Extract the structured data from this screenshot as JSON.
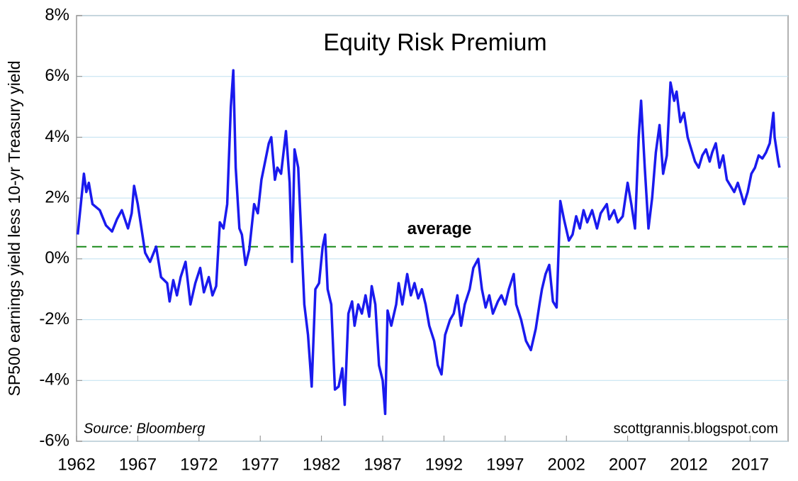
{
  "chart_data": {
    "type": "line",
    "title": "Equity Risk Premium",
    "y_label": "SP500 earnings yield less 10-yr Treasury yield",
    "source": "Source: Bloomberg",
    "watermark": "scottgrannis.blogspot.com",
    "color": "#1a1aee",
    "grid": true,
    "reference_line": {
      "value": 0.4,
      "label": "average",
      "color": "#1a8a1a"
    },
    "xlim": [
      1962,
      2020.1
    ],
    "xticks": [
      1962,
      1967,
      1972,
      1977,
      1982,
      1987,
      1992,
      1997,
      2002,
      2007,
      2012,
      2017
    ],
    "ylim": [
      -6,
      8
    ],
    "yticks": [
      {
        "value": -6,
        "label": "-6%"
      },
      {
        "value": -4,
        "label": "-4%"
      },
      {
        "value": -2,
        "label": "-2%"
      },
      {
        "value": 0,
        "label": "0%"
      },
      {
        "value": 2,
        "label": "2%"
      },
      {
        "value": 4,
        "label": "4%"
      },
      {
        "value": 6,
        "label": "6%"
      },
      {
        "value": 8,
        "label": "8%"
      }
    ],
    "x": [
      1962.1,
      1962.6,
      1962.8,
      1963.0,
      1963.3,
      1963.9,
      1964.4,
      1964.9,
      1965.3,
      1965.7,
      1966.2,
      1966.5,
      1966.7,
      1967.0,
      1967.3,
      1967.6,
      1968.0,
      1968.5,
      1968.9,
      1969.4,
      1969.6,
      1969.9,
      1970.2,
      1970.5,
      1970.9,
      1971.3,
      1971.7,
      1972.1,
      1972.4,
      1972.8,
      1973.1,
      1973.4,
      1973.7,
      1974.0,
      1974.3,
      1974.6,
      1974.8,
      1975.0,
      1975.3,
      1975.5,
      1975.8,
      1976.1,
      1976.5,
      1976.8,
      1977.1,
      1977.4,
      1977.7,
      1977.9,
      1978.2,
      1978.4,
      1978.7,
      1979.1,
      1979.4,
      1979.6,
      1979.8,
      1980.1,
      1980.4,
      1980.6,
      1980.9,
      1981.2,
      1981.5,
      1981.8,
      1982.1,
      1982.3,
      1982.5,
      1982.8,
      1983.1,
      1983.4,
      1983.7,
      1983.9,
      1984.2,
      1984.5,
      1984.7,
      1985.0,
      1985.3,
      1985.6,
      1985.9,
      1986.1,
      1986.4,
      1986.7,
      1987.0,
      1987.2,
      1987.4,
      1987.7,
      1988.1,
      1988.3,
      1988.6,
      1989.0,
      1989.3,
      1989.6,
      1989.9,
      1990.2,
      1990.5,
      1990.8,
      1991.2,
      1991.5,
      1991.8,
      1992.1,
      1992.5,
      1992.8,
      1993.1,
      1993.4,
      1993.7,
      1994.1,
      1994.4,
      1994.8,
      1995.1,
      1995.4,
      1995.7,
      1996.0,
      1996.4,
      1996.7,
      1997.0,
      1997.3,
      1997.7,
      1997.9,
      1998.3,
      1998.7,
      1999.1,
      1999.5,
      1999.8,
      2000.0,
      2000.3,
      2000.6,
      2000.9,
      2001.2,
      2001.5,
      2001.8,
      2002.2,
      2002.5,
      2002.8,
      2003.1,
      2003.4,
      2003.7,
      2004.1,
      2004.5,
      2004.8,
      2005.3,
      2005.5,
      2005.9,
      2006.2,
      2006.6,
      2007.0,
      2007.3,
      2007.6,
      2007.9,
      2008.1,
      2008.4,
      2008.7,
      2009.0,
      2009.3,
      2009.6,
      2009.9,
      2010.2,
      2010.5,
      2010.8,
      2011.0,
      2011.3,
      2011.6,
      2011.9,
      2012.2,
      2012.5,
      2012.8,
      2013.1,
      2013.4,
      2013.7,
      2013.9,
      2014.2,
      2014.5,
      2014.8,
      2015.1,
      2015.4,
      2015.7,
      2016.0,
      2016.3,
      2016.5,
      2016.8,
      2017.1,
      2017.4,
      2017.7,
      2018.0,
      2018.3,
      2018.6,
      2018.9,
      2019.0,
      2019.3,
      2019.4
    ],
    "values": [
      0.8,
      2.8,
      2.2,
      2.5,
      1.8,
      1.6,
      1.1,
      0.9,
      1.3,
      1.6,
      1.0,
      1.5,
      2.4,
      1.8,
      1.0,
      0.2,
      -0.1,
      0.4,
      -0.6,
      -0.8,
      -1.4,
      -0.7,
      -1.2,
      -0.6,
      -0.1,
      -1.5,
      -0.8,
      -0.3,
      -1.1,
      -0.6,
      -1.2,
      -0.9,
      1.2,
      1.0,
      1.8,
      5.0,
      6.2,
      3.0,
      1.0,
      0.8,
      -0.2,
      0.3,
      1.8,
      1.5,
      2.6,
      3.2,
      3.8,
      4.0,
      2.6,
      3.0,
      2.8,
      4.2,
      2.5,
      -0.1,
      3.6,
      3.0,
      0.3,
      -1.5,
      -2.5,
      -4.2,
      -1.0,
      -0.8,
      0.4,
      0.8,
      -1.0,
      -1.5,
      -4.3,
      -4.2,
      -3.6,
      -4.8,
      -1.8,
      -1.4,
      -2.2,
      -1.5,
      -1.8,
      -1.2,
      -1.9,
      -0.9,
      -1.5,
      -3.5,
      -4.0,
      -5.1,
      -1.7,
      -2.2,
      -1.5,
      -0.8,
      -1.5,
      -0.5,
      -1.2,
      -0.8,
      -1.3,
      -1.0,
      -1.5,
      -2.2,
      -2.7,
      -3.5,
      -3.8,
      -2.5,
      -2.0,
      -1.8,
      -1.2,
      -2.2,
      -1.5,
      -1.0,
      -0.3,
      0.0,
      -1.0,
      -1.6,
      -1.2,
      -1.8,
      -1.4,
      -1.2,
      -1.5,
      -1.0,
      -0.5,
      -1.5,
      -2.0,
      -2.7,
      -3.0,
      -2.3,
      -1.5,
      -1.0,
      -0.5,
      -0.2,
      -1.4,
      -1.6,
      1.9,
      1.3,
      0.6,
      0.8,
      1.4,
      1.0,
      1.6,
      1.2,
      1.6,
      1.0,
      1.5,
      1.8,
      1.3,
      1.6,
      1.2,
      1.4,
      2.5,
      1.8,
      1.0,
      4.0,
      5.2,
      3.0,
      1.0,
      2.0,
      3.5,
      4.4,
      2.8,
      3.4,
      5.8,
      5.2,
      5.5,
      4.5,
      4.8,
      4.0,
      3.6,
      3.2,
      3.0,
      3.4,
      3.6,
      3.2,
      3.5,
      3.8,
      3.0,
      3.4,
      2.6,
      2.4,
      2.2,
      2.5,
      2.1,
      1.8,
      2.2,
      2.8,
      3.0,
      3.4,
      3.3,
      3.5,
      3.8,
      4.8,
      4.0,
      3.2,
      3.0
    ]
  }
}
